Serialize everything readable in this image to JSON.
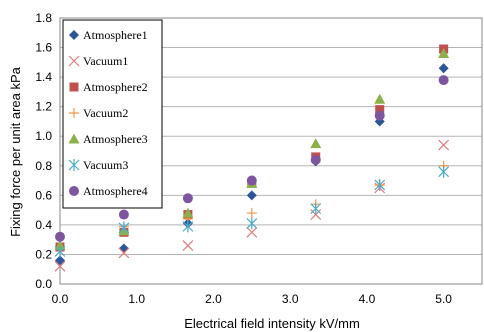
{
  "chart_data": {
    "type": "scatter",
    "xlabel": "Electrical field intensity kV/mm",
    "ylabel": "Fixing force per unit area kPa",
    "xlim": [
      0,
      5.5
    ],
    "ylim": [
      0,
      1.8
    ],
    "x_ticks": [
      "0.0",
      "1.0",
      "2.0",
      "3.0",
      "4.0",
      "5.0"
    ],
    "y_ticks": [
      "0.0",
      "0.2",
      "0.4",
      "0.6",
      "0.8",
      "1.0",
      "1.2",
      "1.4",
      "1.6",
      "1.8"
    ],
    "grid": "horizontal",
    "legend_position": "top-left",
    "x": [
      0,
      0.833,
      1.667,
      2.5,
      3.333,
      4.167,
      5.0
    ],
    "series": [
      {
        "name": "Atmosphere1",
        "marker": "diamond",
        "color": "#2E5597",
        "values": [
          0.16,
          0.24,
          0.41,
          0.6,
          0.83,
          1.1,
          1.46
        ]
      },
      {
        "name": "Vacuum1",
        "marker": "x",
        "color": "#E07C7C",
        "values": [
          0.12,
          0.21,
          0.26,
          0.35,
          0.47,
          0.65,
          0.94
        ]
      },
      {
        "name": "Atmosphere2",
        "marker": "square",
        "color": "#C0504D",
        "values": [
          0.25,
          0.35,
          0.47,
          0.68,
          0.86,
          1.18,
          1.59
        ]
      },
      {
        "name": "Vacuum2",
        "marker": "plus",
        "color": "#F79646",
        "values": [
          0.24,
          0.39,
          0.44,
          0.48,
          0.54,
          0.67,
          0.8
        ]
      },
      {
        "name": "Atmosphere3",
        "marker": "triangle",
        "color": "#8DB04A",
        "values": [
          0.26,
          0.36,
          0.48,
          0.68,
          0.95,
          1.25,
          1.56
        ]
      },
      {
        "name": "Vacuum3",
        "marker": "asterisk",
        "color": "#4BACC6",
        "values": [
          0.22,
          0.38,
          0.39,
          0.41,
          0.51,
          0.67,
          0.76
        ]
      },
      {
        "name": "Atmosphere4",
        "marker": "circle",
        "color": "#7E56A0",
        "values": [
          0.32,
          0.47,
          0.58,
          0.7,
          0.84,
          1.14,
          1.38
        ]
      }
    ]
  }
}
